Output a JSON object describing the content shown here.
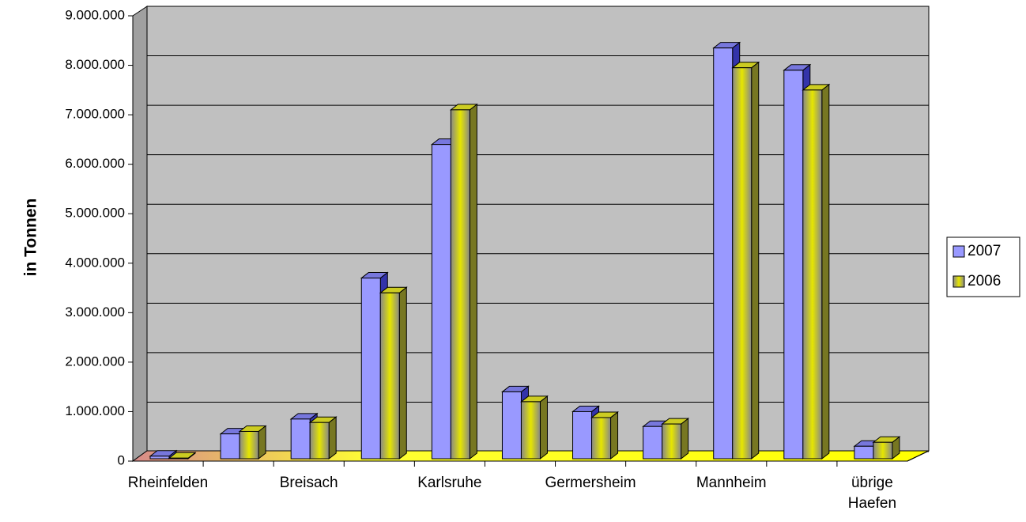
{
  "chart_data": {
    "type": "bar3d",
    "y_label": "in Tonnen",
    "categories": [
      "Rheinfelden",
      null,
      "Breisach",
      null,
      "Karlsruhe",
      null,
      "Germersheim",
      null,
      "Mannheim",
      null,
      "übrige Haefen"
    ],
    "series": [
      {
        "name": "2007",
        "color": "#9999ff",
        "values": [
          100000,
          550000,
          850000,
          3700000,
          6400000,
          1400000,
          1000000,
          700000,
          8350000,
          7900000,
          300000
        ]
      },
      {
        "name": "2006",
        "color": "#e6e600",
        "values": [
          60000,
          600000,
          780000,
          3400000,
          7100000,
          1200000,
          880000,
          750000,
          7950000,
          7500000,
          380000
        ]
      }
    ],
    "ylim": [
      0,
      9000000
    ],
    "yticks": [
      0,
      {
        "value": 1000000,
        "label": "1.000.000"
      },
      {
        "value": 2000000,
        "label": "2.000.000"
      },
      {
        "value": 3000000,
        "label": "3.000.000"
      },
      {
        "value": 4000000,
        "label": "4.000.000"
      },
      {
        "value": 5000000,
        "label": "5.000.000"
      },
      {
        "value": 6000000,
        "label": "6.000.000"
      },
      {
        "value": 7000000,
        "label": "7.000.000"
      },
      {
        "value": 8000000,
        "label": "8.000.000"
      },
      {
        "value": 9000000,
        "label": "9.000.000"
      }
    ],
    "grid": true,
    "legend": "right"
  }
}
